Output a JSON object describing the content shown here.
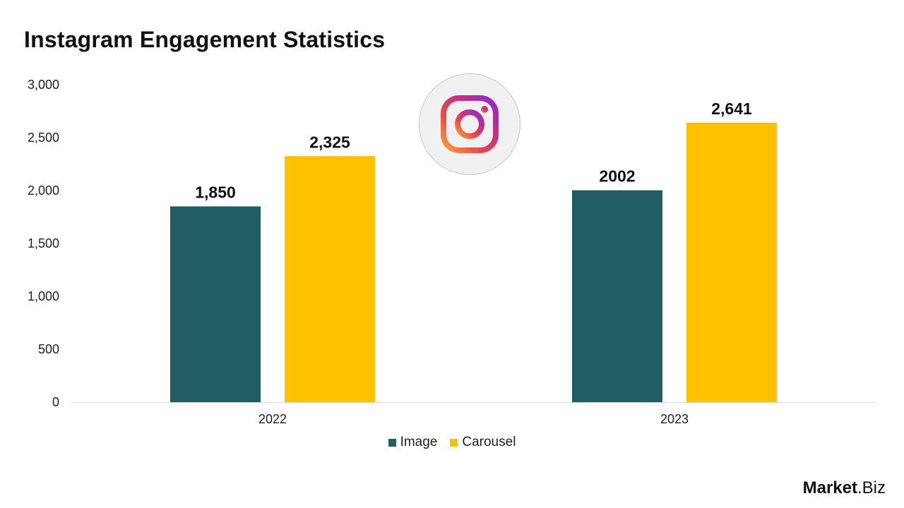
{
  "brand": {
    "part1": "Market",
    "part2": ".Biz"
  },
  "colors": {
    "image": "#215E63",
    "carousel": "#FFC000",
    "axis": "#d9d9d9"
  },
  "icons": {
    "badge": "instagram-logo-icon"
  },
  "chart_data": {
    "type": "bar",
    "title": "Instagram Engagement Statistics",
    "categories": [
      "2022",
      "2023"
    ],
    "series": [
      {
        "name": "Image",
        "values": [
          1850,
          2002
        ],
        "labels": [
          "1,850",
          "2002"
        ],
        "color": "#215E63"
      },
      {
        "name": "Carousel",
        "values": [
          2325,
          2641
        ],
        "labels": [
          "2,325",
          "2,641"
        ],
        "color": "#FFC000"
      }
    ],
    "ylim": [
      0,
      3000
    ],
    "yticks": [
      0,
      500,
      1000,
      1500,
      2000,
      2500,
      3000
    ],
    "ytick_labels": [
      "0",
      "500",
      "1,000",
      "1,500",
      "2,000",
      "2,500",
      "3,000"
    ],
    "grid": false,
    "legend_position": "bottom",
    "xlabel": "",
    "ylabel": ""
  }
}
